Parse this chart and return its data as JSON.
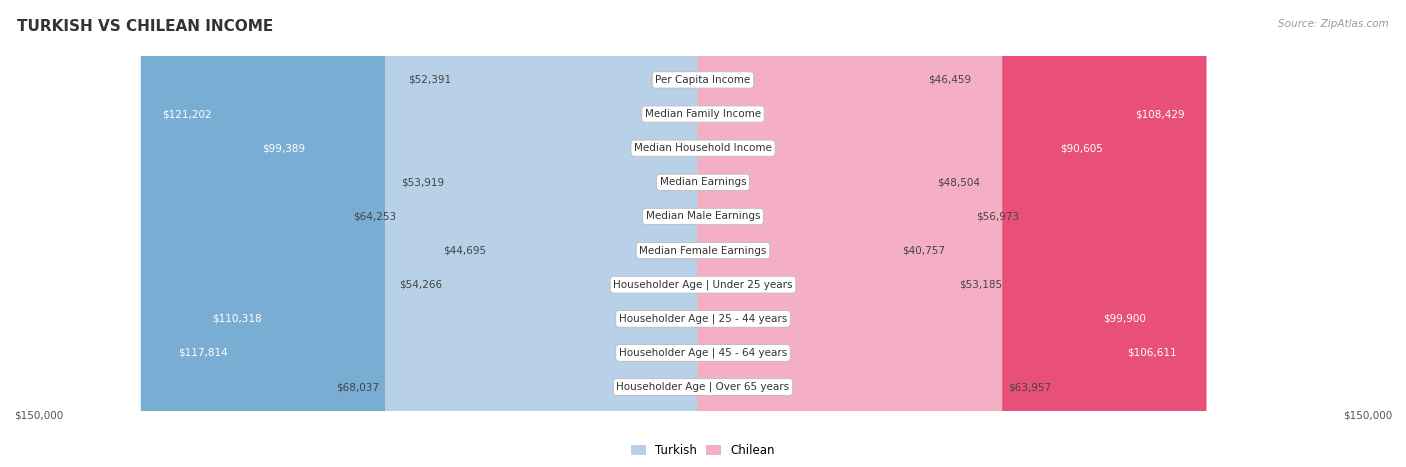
{
  "title": "TURKISH VS CHILEAN INCOME",
  "source": "Source: ZipAtlas.com",
  "categories": [
    "Per Capita Income",
    "Median Family Income",
    "Median Household Income",
    "Median Earnings",
    "Median Male Earnings",
    "Median Female Earnings",
    "Householder Age | Under 25 years",
    "Householder Age | 25 - 44 years",
    "Householder Age | 45 - 64 years",
    "Householder Age | Over 65 years"
  ],
  "turkish_values": [
    52391,
    121202,
    99389,
    53919,
    64253,
    44695,
    54266,
    110318,
    117814,
    68037
  ],
  "chilean_values": [
    46459,
    108429,
    90605,
    48504,
    56973,
    40757,
    53185,
    99900,
    106611,
    63957
  ],
  "turkish_labels": [
    "$52,391",
    "$121,202",
    "$99,389",
    "$53,919",
    "$64,253",
    "$44,695",
    "$54,266",
    "$110,318",
    "$117,814",
    "$68,037"
  ],
  "chilean_labels": [
    "$46,459",
    "$108,429",
    "$90,605",
    "$48,504",
    "$56,973",
    "$40,757",
    "$53,185",
    "$99,900",
    "$106,611",
    "$63,957"
  ],
  "turkish_color_strong": "#7aadd4",
  "turkish_color_weak": "#b8d0e8",
  "chilean_color_strong": "#e8507a",
  "chilean_color_weak": "#f4afc4",
  "turkish_inside_threshold": 85000,
  "chilean_inside_threshold": 85000,
  "max_value": 150000,
  "fig_background": "#ffffff",
  "row_bg_even": "#f0f0f0",
  "row_bg_odd": "#ffffff",
  "row_border_color": "#cccccc",
  "title_fontsize": 11,
  "label_fontsize": 7.5,
  "category_fontsize": 7.5,
  "legend_fontsize": 8.5,
  "axis_label_fontsize": 7.5
}
